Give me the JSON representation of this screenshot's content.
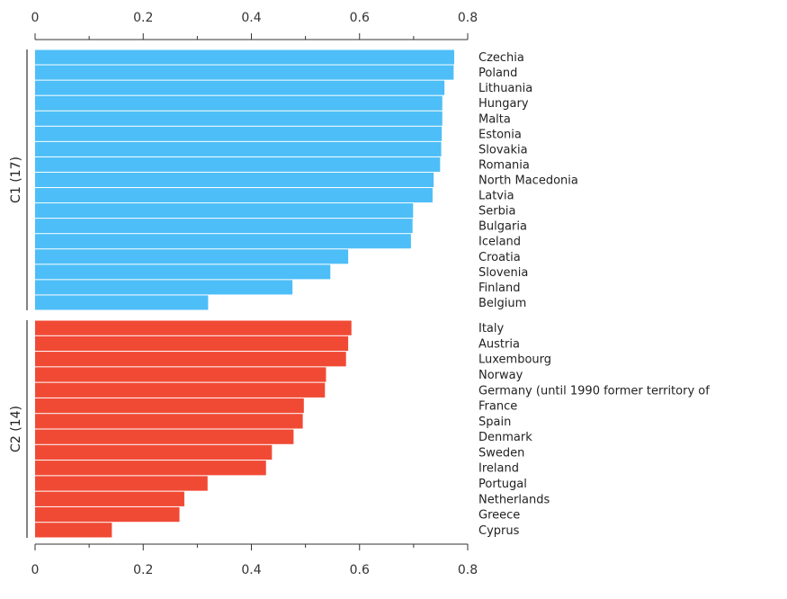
{
  "chart_data": {
    "type": "bar",
    "orientation": "horizontal",
    "title": "",
    "xlabel": "",
    "ylabel": "",
    "xlim": [
      0,
      0.8
    ],
    "x_ticks": [
      "0",
      "0.2",
      "0.4",
      "0.6",
      "0.8"
    ],
    "grid": false,
    "groups": [
      {
        "name": "C1 (17)",
        "color": "#4dbef7",
        "categories": [
          "Czechia",
          "Poland",
          "Lithuania",
          "Hungary",
          "Malta",
          "Estonia",
          "Slovakia",
          "Romania",
          "North Macedonia",
          "Latvia",
          "Serbia",
          "Bulgaria",
          "Iceland",
          "Croatia",
          "Slovenia",
          "Finland",
          "Belgium"
        ],
        "values": [
          0.775,
          0.774,
          0.757,
          0.753,
          0.753,
          0.752,
          0.751,
          0.749,
          0.737,
          0.735,
          0.699,
          0.698,
          0.695,
          0.579,
          0.546,
          0.476,
          0.32
        ]
      },
      {
        "name": "C2 (14)",
        "color": "#f04a35",
        "categories": [
          "Italy",
          "Austria",
          "Luxembourg",
          "Norway",
          "Germany (until 1990 former territory of",
          "France",
          "Spain",
          "Denmark",
          "Sweden",
          "Ireland",
          "Portugal",
          "Netherlands",
          "Greece",
          "Cyprus"
        ],
        "values": [
          0.585,
          0.579,
          0.575,
          0.538,
          0.536,
          0.497,
          0.495,
          0.478,
          0.438,
          0.427,
          0.319,
          0.276,
          0.267,
          0.142
        ]
      }
    ]
  }
}
